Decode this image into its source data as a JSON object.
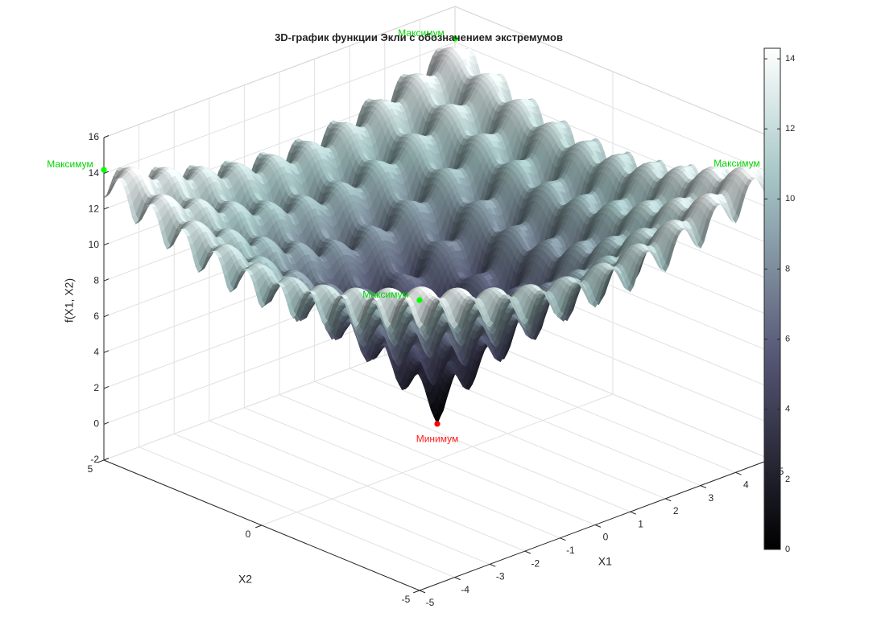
{
  "chart_data": {
    "type": "surface",
    "title": "3D-график функции Экли с обозначением экстремумов",
    "xlabel": "X1",
    "ylabel": "X2",
    "zlabel": "f(X1, X2)",
    "xlim": [
      -5,
      5
    ],
    "ylim": [
      -5,
      5
    ],
    "zlim": [
      -2,
      16
    ],
    "x_ticks": [
      "-5",
      "-4",
      "-3",
      "-2",
      "-1",
      "0",
      "1",
      "2",
      "3",
      "4",
      "5"
    ],
    "y_ticks": [
      "-5",
      "0",
      "5"
    ],
    "z_ticks": [
      "-2",
      "0",
      "2",
      "4",
      "6",
      "8",
      "10",
      "12",
      "14",
      "16"
    ],
    "grid": true,
    "colormap": "bone",
    "colorbar": {
      "range": [
        0,
        14.3
      ],
      "ticks": [
        "0",
        "2",
        "4",
        "6",
        "8",
        "10",
        "12",
        "14"
      ]
    },
    "function": "ackley",
    "annotations": [
      {
        "label": "Максимум",
        "x": -5,
        "y": -5,
        "z": 14.2,
        "color": "#00ff00"
      },
      {
        "label": "Максимум",
        "x": 5,
        "y": -5,
        "z": 14.2,
        "color": "#00ff00"
      },
      {
        "label": "Максимум",
        "x": -5,
        "y": 5,
        "z": 14.2,
        "color": "#00ff00"
      },
      {
        "label": "Максимум",
        "x": 5,
        "y": 5,
        "z": 14.2,
        "color": "#00ff00"
      },
      {
        "label": "Минимум",
        "x": 0,
        "y": 0,
        "z": 0,
        "color": "#ff0000"
      }
    ]
  }
}
